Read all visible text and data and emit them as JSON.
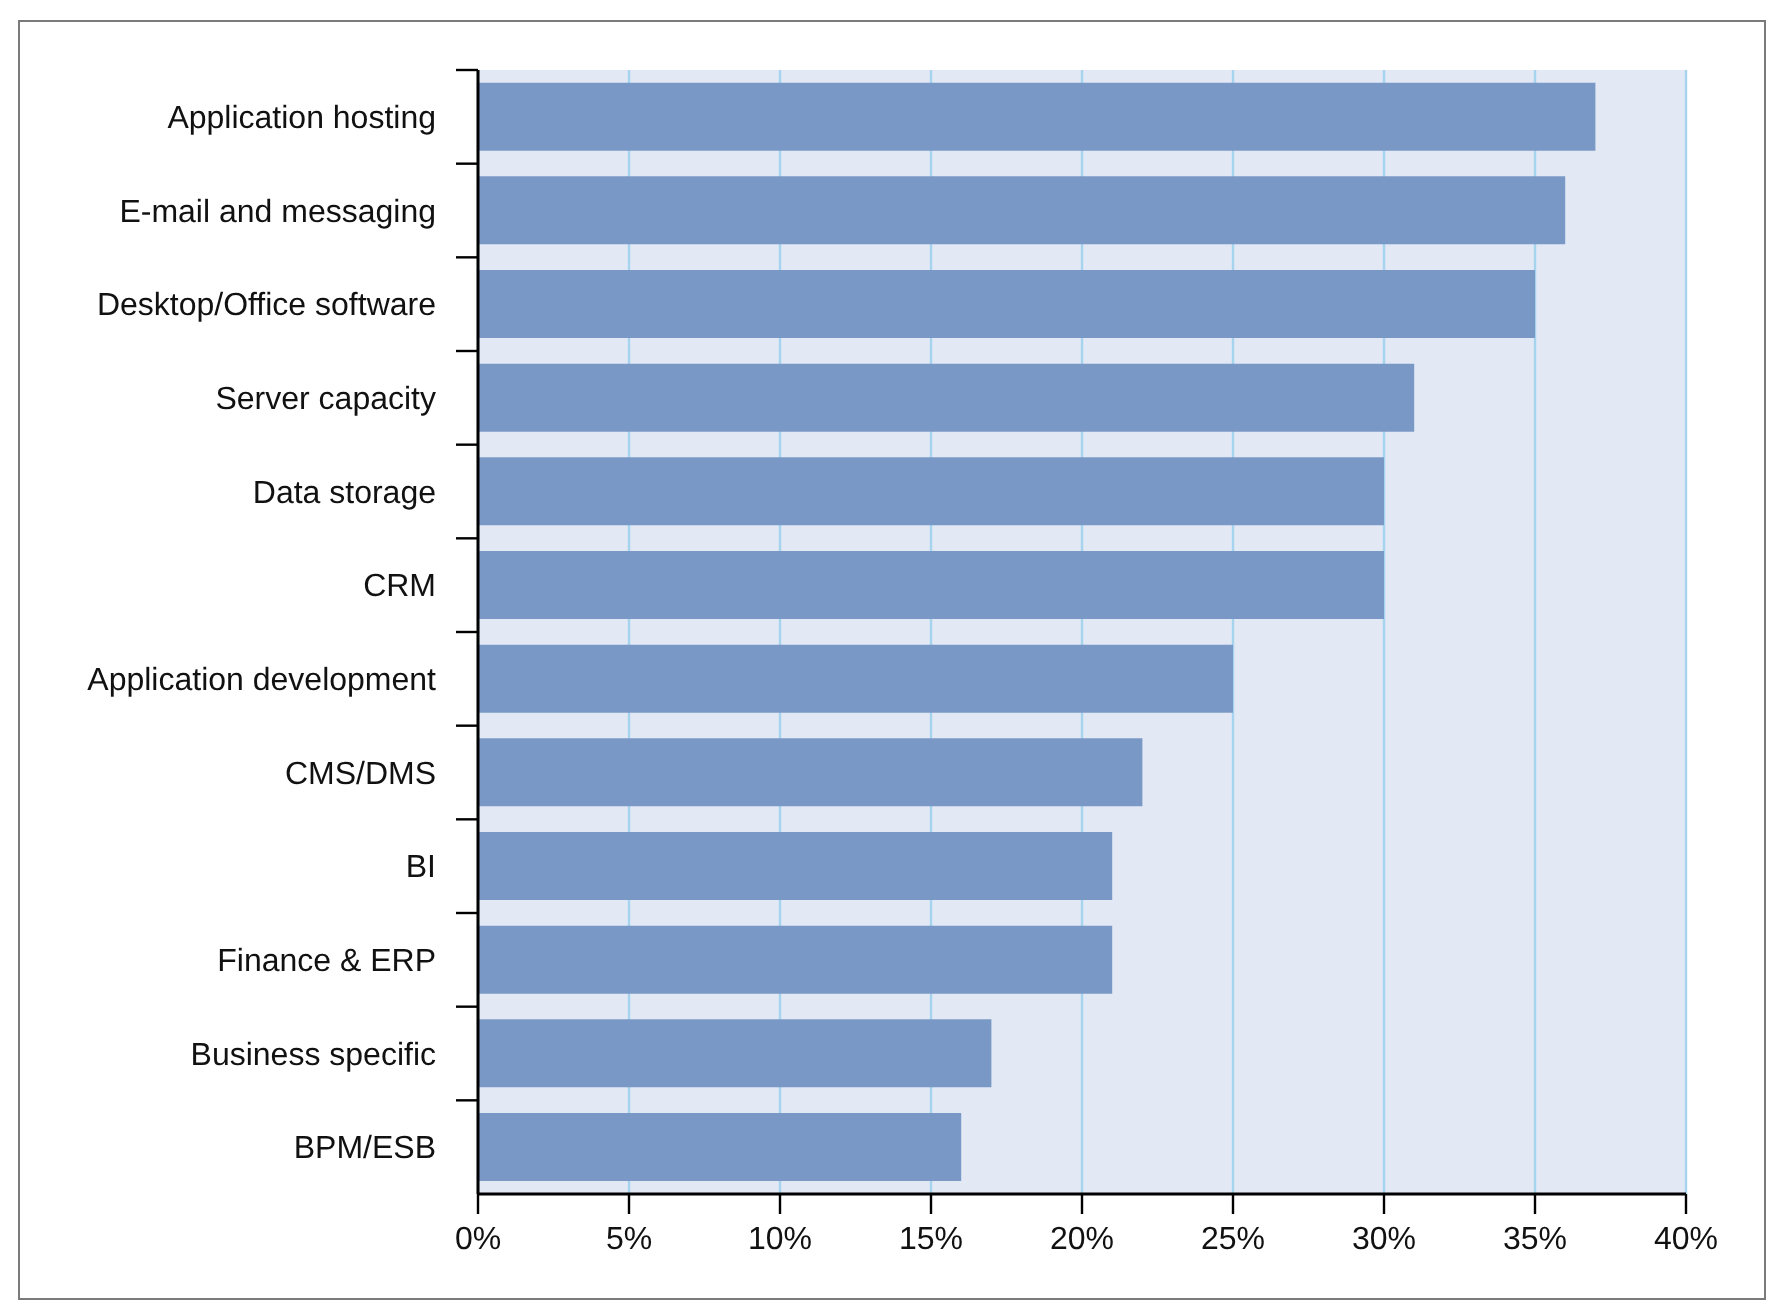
{
  "chart_data": {
    "type": "bar",
    "orientation": "horizontal",
    "categories": [
      "Application hosting",
      "E-mail and messaging",
      "Desktop/Office software",
      "Server capacity",
      "Data storage",
      "CRM",
      "Application development",
      "CMS/DMS",
      "BI",
      "Finance & ERP",
      "Business specific",
      "BPM/ESB"
    ],
    "values": [
      37,
      36,
      35,
      31,
      30,
      30,
      25,
      22,
      21,
      21,
      17,
      16
    ],
    "color": "#7a98c6",
    "xlim": [
      0,
      40
    ],
    "xticks": [
      {
        "value": 0,
        "label": "0%"
      },
      {
        "value": 5,
        "label": "5%"
      },
      {
        "value": 10,
        "label": "10%"
      },
      {
        "value": 15,
        "label": "15%"
      },
      {
        "value": 20,
        "label": "20%"
      },
      {
        "value": 25,
        "label": "25%"
      },
      {
        "value": 30,
        "label": "30%"
      },
      {
        "value": 35,
        "label": "35%"
      },
      {
        "value": 40,
        "label": "40%"
      }
    ],
    "grid": "x"
  }
}
